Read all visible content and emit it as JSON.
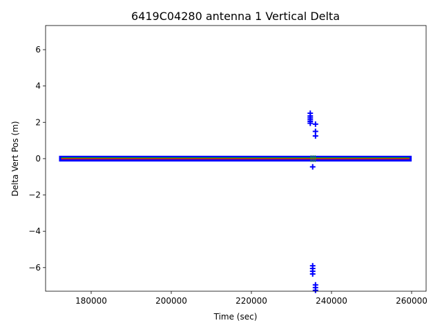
{
  "chart_data": {
    "type": "scatter",
    "title": "6419C04280 antenna 1 Vertical Delta",
    "xlabel": "Time (sec)",
    "ylabel": "Delta Vert Pos (m)",
    "xlim": [
      168620,
      263620
    ],
    "ylim": [
      -7.3,
      7.33
    ],
    "xticks": [
      180000,
      200000,
      220000,
      240000,
      260000
    ],
    "xtick_labels": [
      "180000",
      "200000",
      "220000",
      "240000",
      "260000"
    ],
    "yticks": [
      -6,
      -4,
      -2,
      0,
      2,
      4,
      6
    ],
    "ytick_labels": [
      "−6",
      "−4",
      "−2",
      "0",
      "2",
      "4",
      "6"
    ],
    "grid": false,
    "band": {
      "x_start": 172500,
      "x_end": 259500,
      "y_low": -0.12,
      "y_high": 0.12,
      "marker": "+",
      "color": "#0000ff"
    },
    "series": [
      {
        "color": "#0000ff",
        "marker": "+",
        "points": [
          [
            234700,
            2.5
          ],
          [
            234700,
            2.35
          ],
          [
            234700,
            2.25
          ],
          [
            234700,
            2.15
          ],
          [
            234700,
            2.05
          ],
          [
            234700,
            1.95
          ],
          [
            236000,
            1.9
          ],
          [
            236000,
            1.5
          ],
          [
            236000,
            1.25
          ],
          [
            235300,
            -0.45
          ],
          [
            235300,
            -5.9
          ],
          [
            235300,
            -6.05
          ],
          [
            235300,
            -6.2
          ],
          [
            235300,
            -6.35
          ],
          [
            236000,
            -6.95
          ],
          [
            236000,
            -7.1
          ],
          [
            236000,
            -7.25
          ]
        ]
      },
      {
        "color": "#2ca02c",
        "marker": "|",
        "points": [
          [
            234900,
            0
          ],
          [
            235400,
            0
          ],
          [
            235900,
            0
          ]
        ]
      }
    ],
    "lines": [
      {
        "color": "#00cc00",
        "y": 0.04,
        "x_start": 172500,
        "x_end": 259500
      },
      {
        "color": "#ff0000",
        "y": -0.01,
        "x_start": 172500,
        "x_end": 259500
      }
    ]
  }
}
